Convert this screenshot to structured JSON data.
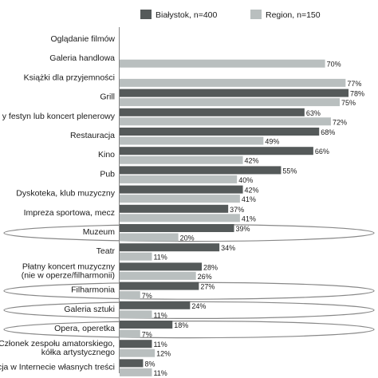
{
  "chart_data": {
    "type": "bar",
    "orientation": "horizontal",
    "categories": [
      "Oglądanie filmów",
      "Galeria handlowa",
      "Książki dla przyjemności",
      "Grill",
      "y festyn lub koncert plenerowy",
      "Restauracja",
      "Kino",
      "Pub",
      "Dyskoteka, klub muzyczny",
      "Impreza sportowa, mecz",
      "Muzeum",
      "Teatr",
      "Płatny koncert muzyczny\n(nie w operze/filharmonii)",
      "Filharmonia",
      "Galeria sztuki",
      "Opera, operetka",
      "Członek zespołu amatorskiego,\nkółka artystycznego",
      "cja w Internecie własnych treści"
    ],
    "series": [
      {
        "name": "Białystok, n=400",
        "color": "#555a5a",
        "values": [
          null,
          null,
          null,
          78,
          63,
          68,
          66,
          55,
          42,
          37,
          39,
          34,
          28,
          27,
          24,
          18,
          11,
          8
        ],
        "labels": [
          "",
          "",
          "",
          "78%",
          "63%",
          "68%",
          "66%",
          "55%",
          "42%",
          "37%",
          "39%",
          "34%",
          "28%",
          "27%",
          "24%",
          "18%",
          "11%",
          "8%"
        ]
      },
      {
        "name": "Region, n=150",
        "color": "#b9bfbf",
        "values": [
          null,
          70,
          77,
          75,
          72,
          49,
          42,
          40,
          41,
          41,
          20,
          11,
          26,
          7,
          11,
          7,
          12,
          11
        ],
        "labels": [
          "",
          "70%",
          "77%",
          "75%",
          "72%",
          "49%",
          "42%",
          "40%",
          "41%",
          "41%",
          "20%",
          "11%",
          "26%",
          "7%",
          "11%",
          "7%",
          "12%",
          "11%"
        ]
      }
    ],
    "highlighted_categories": [
      "Muzeum",
      "Filharmonia",
      "Galeria sztuki",
      "Opera, operetka"
    ],
    "xlim": [
      0,
      100
    ],
    "grid": false,
    "legend": "top"
  }
}
